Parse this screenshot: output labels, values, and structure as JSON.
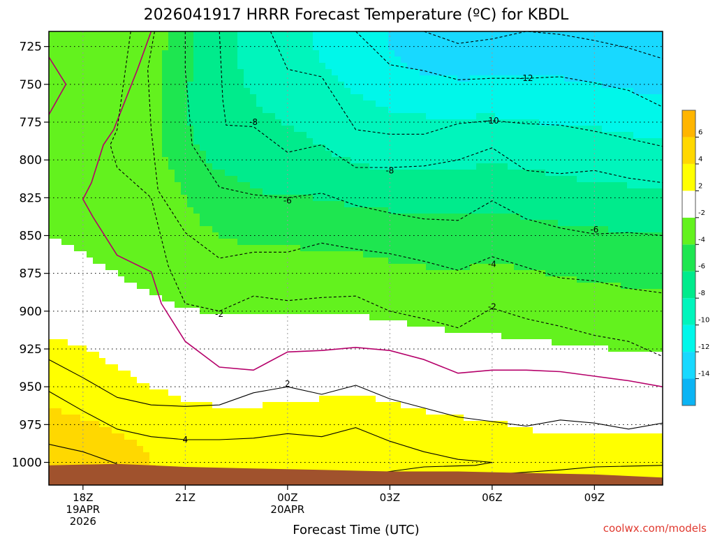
{
  "chart_data": {
    "type": "area",
    "title": "2026041917 HRRR Forecast Temperature (ºC) for KBDL",
    "subtitle": "",
    "xlabel": "Forecast Time (UTC)",
    "ylabel": "",
    "x_unit": "hours from 17Z 19APR 2026",
    "xlim": [
      0,
      18
    ],
    "ylim": [
      1015,
      715
    ],
    "y_log": false,
    "grid": true,
    "legend": "right colorbar",
    "x_ticks": [
      {
        "x": 1,
        "lines": [
          "18Z",
          "19APR",
          "2026"
        ]
      },
      {
        "x": 4,
        "lines": [
          "21Z"
        ]
      },
      {
        "x": 7,
        "lines": [
          "00Z",
          "20APR"
        ]
      },
      {
        "x": 10,
        "lines": [
          "03Z"
        ]
      },
      {
        "x": 13,
        "lines": [
          "06Z"
        ]
      },
      {
        "x": 16,
        "lines": [
          "09Z"
        ]
      }
    ],
    "y_ticks": [
      725,
      750,
      775,
      800,
      825,
      850,
      875,
      900,
      925,
      950,
      975,
      1000
    ],
    "levels": [
      {
        "lo": -99,
        "hi": -14,
        "color": "#0bb4f4"
      },
      {
        "lo": -14,
        "hi": -12,
        "color": "#18d9ff"
      },
      {
        "lo": -12,
        "hi": -10,
        "color": "#00f7ea"
      },
      {
        "lo": -10,
        "hi": -8,
        "color": "#00f5bc"
      },
      {
        "lo": -8,
        "hi": -6,
        "color": "#00eb8c"
      },
      {
        "lo": -6,
        "hi": -4,
        "color": "#1ee650"
      },
      {
        "lo": -4,
        "hi": -2,
        "color": "#63f21e"
      },
      {
        "lo": -2,
        "hi": 2,
        "color": "#ffffff"
      },
      {
        "lo": 2,
        "hi": 4,
        "color": "#ffff00"
      },
      {
        "lo": 4,
        "hi": 6,
        "color": "#ffd800"
      },
      {
        "lo": 6,
        "hi": 99,
        "color": "#ffb500"
      }
    ],
    "colorbar": {
      "colors": [
        "#0bb4f4",
        "#18d9ff",
        "#00f7ea",
        "#00f5bc",
        "#00eb8c",
        "#1ee650",
        "#63f21e",
        "#ffffff",
        "#ffff00",
        "#ffd800",
        "#ffb500"
      ],
      "labels": [
        "-14",
        "-12",
        "-10",
        "-8",
        "-6",
        "-4",
        "-2",
        "2",
        "4",
        "6"
      ]
    },
    "isotherms": [
      {
        "value": 6,
        "style": "solid",
        "color": "#000000",
        "points": [
          [
            0,
            988
          ],
          [
            1,
            993
          ],
          [
            2,
            1001
          ]
        ]
      },
      {
        "value": 4,
        "style": "solid",
        "color": "#000000",
        "points": [
          [
            0,
            953
          ],
          [
            1,
            966
          ],
          [
            2,
            978
          ],
          [
            3,
            983
          ],
          [
            4,
            985
          ],
          [
            5,
            985
          ],
          [
            6,
            984
          ],
          [
            7,
            981
          ],
          [
            8,
            983
          ],
          [
            9,
            977
          ],
          [
            10,
            986
          ],
          [
            11,
            993
          ],
          [
            12,
            998
          ],
          [
            13,
            1000
          ],
          [
            12.5,
            1002
          ],
          [
            11,
            1003
          ],
          [
            10,
            1006
          ],
          [
            9.3,
            1008
          ]
        ]
      },
      {
        "value": 4,
        "style": "solid",
        "color": "#000000",
        "points": [
          [
            12.8,
            1009
          ],
          [
            13,
            1008
          ],
          [
            15,
            1005
          ],
          [
            16,
            1003
          ],
          [
            18,
            1002
          ]
        ]
      },
      {
        "value": 2,
        "style": "solid",
        "color": "#000000",
        "points": [
          [
            0,
            932
          ],
          [
            1,
            944
          ],
          [
            2,
            957
          ],
          [
            3,
            962
          ],
          [
            4,
            963
          ],
          [
            5,
            962
          ],
          [
            6,
            954
          ],
          [
            7,
            950
          ],
          [
            8,
            955
          ],
          [
            9,
            949
          ],
          [
            10,
            958
          ],
          [
            11,
            964
          ],
          [
            12,
            970
          ],
          [
            13,
            973
          ],
          [
            14,
            976
          ],
          [
            15,
            972
          ],
          [
            16,
            974
          ],
          [
            17,
            978
          ],
          [
            18,
            974
          ]
        ]
      },
      {
        "value": -2,
        "style": "solid",
        "color": "#b5006a",
        "points": [
          [
            0,
            732
          ],
          [
            0.5,
            750
          ],
          [
            0,
            770
          ]
        ]
      },
      {
        "value": -2,
        "style": "solid",
        "color": "#b5006a",
        "points": [
          [
            3,
            715
          ],
          [
            2.6,
            740
          ],
          [
            1.9,
            780
          ],
          [
            1.6,
            790
          ],
          [
            1.25,
            815
          ],
          [
            1,
            826
          ],
          [
            1.3,
            838
          ],
          [
            2,
            863
          ],
          [
            3,
            874
          ],
          [
            3.3,
            895
          ],
          [
            4,
            920
          ],
          [
            5,
            937
          ],
          [
            6,
            939
          ],
          [
            7,
            927
          ],
          [
            8,
            926
          ],
          [
            9,
            924
          ],
          [
            10,
            926
          ],
          [
            11,
            932
          ],
          [
            12,
            941
          ],
          [
            13,
            939
          ],
          [
            14,
            939
          ],
          [
            15,
            940
          ],
          [
            16,
            943
          ],
          [
            17,
            946
          ],
          [
            18,
            950
          ]
        ]
      },
      {
        "value": -2,
        "style": "dashed",
        "color": "#000000",
        "points": [
          [
            2.4,
            715
          ],
          [
            2.0,
            780
          ],
          [
            1.8,
            790
          ],
          [
            2,
            805
          ],
          [
            3,
            825
          ],
          [
            3.5,
            870
          ],
          [
            4,
            895
          ],
          [
            5,
            900
          ],
          [
            6,
            890
          ],
          [
            7,
            893
          ],
          [
            8,
            891
          ],
          [
            9,
            890
          ],
          [
            10,
            900
          ],
          [
            11,
            905
          ],
          [
            12,
            911
          ],
          [
            13,
            898
          ],
          [
            14,
            905
          ],
          [
            15,
            910
          ],
          [
            16,
            916
          ],
          [
            17,
            920
          ],
          [
            18,
            930
          ]
        ]
      },
      {
        "value": -4,
        "style": "dashed",
        "color": "#000000",
        "points": [
          [
            3.1,
            715
          ],
          [
            2.9,
            740
          ],
          [
            3,
            780
          ],
          [
            3.2,
            820
          ],
          [
            4,
            848
          ],
          [
            5,
            865
          ],
          [
            6,
            861
          ],
          [
            7,
            861
          ],
          [
            8,
            855
          ],
          [
            9,
            859
          ],
          [
            10,
            862
          ],
          [
            11,
            867
          ],
          [
            12,
            873
          ],
          [
            13,
            864
          ],
          [
            14,
            871
          ],
          [
            15,
            878
          ],
          [
            16,
            880
          ],
          [
            17,
            885
          ],
          [
            18,
            888
          ]
        ]
      },
      {
        "value": -6,
        "style": "dashed",
        "color": "#000000",
        "points": [
          [
            4.0,
            715
          ],
          [
            4.0,
            740
          ],
          [
            4.2,
            790
          ],
          [
            5,
            818
          ],
          [
            6,
            823
          ],
          [
            7,
            825
          ],
          [
            8,
            822
          ],
          [
            9,
            830
          ],
          [
            10,
            835
          ],
          [
            11,
            839
          ],
          [
            12,
            840
          ],
          [
            13,
            827
          ],
          [
            14,
            839
          ],
          [
            15,
            845
          ],
          [
            16,
            849
          ],
          [
            17,
            848
          ],
          [
            18,
            850
          ]
        ]
      },
      {
        "value": -8,
        "style": "dashed",
        "color": "#000000",
        "points": [
          [
            5.0,
            715
          ],
          [
            5.1,
            760
          ],
          [
            5.2,
            777
          ],
          [
            6,
            778
          ],
          [
            7,
            795
          ],
          [
            8,
            790
          ],
          [
            9,
            805
          ],
          [
            10,
            805
          ],
          [
            11,
            804
          ],
          [
            12,
            800
          ],
          [
            13,
            792
          ],
          [
            14,
            807
          ],
          [
            15,
            809
          ],
          [
            16,
            807
          ],
          [
            17,
            812
          ],
          [
            18,
            815
          ]
        ]
      },
      {
        "value": -10,
        "style": "dashed",
        "color": "#000000",
        "points": [
          [
            6.5,
            715
          ],
          [
            7,
            740
          ],
          [
            8,
            745
          ],
          [
            9,
            780
          ],
          [
            10,
            783
          ],
          [
            11,
            783
          ],
          [
            12,
            776
          ],
          [
            13,
            774
          ],
          [
            14,
            776
          ],
          [
            15,
            777
          ],
          [
            16,
            781
          ],
          [
            17,
            786
          ],
          [
            18,
            791
          ]
        ]
      },
      {
        "value": -12,
        "style": "dashed",
        "color": "#000000",
        "points": [
          [
            9,
            715
          ],
          [
            10,
            737
          ],
          [
            11,
            741
          ],
          [
            12,
            747
          ],
          [
            13,
            746
          ],
          [
            14,
            746
          ],
          [
            15,
            745
          ],
          [
            16,
            749
          ],
          [
            17,
            754
          ],
          [
            18,
            765
          ]
        ]
      },
      {
        "value": -14,
        "style": "dashed",
        "color": "#000000",
        "points": [
          [
            11,
            715
          ],
          [
            12,
            723
          ],
          [
            13,
            720
          ],
          [
            14,
            715
          ],
          [
            15,
            717
          ],
          [
            16,
            721
          ],
          [
            17,
            726
          ],
          [
            18,
            733
          ]
        ]
      }
    ],
    "contour_labels": [
      {
        "text": "-2",
        "x": 5.0,
        "y": 902
      },
      {
        "text": "-2",
        "x": 13.0,
        "y": 897
      },
      {
        "text": "-4",
        "x": 13.0,
        "y": 869
      },
      {
        "text": "-6",
        "x": 7.0,
        "y": 827
      },
      {
        "text": "-6",
        "x": 16.0,
        "y": 846
      },
      {
        "text": "-8",
        "x": 6.0,
        "y": 775
      },
      {
        "text": "-8",
        "x": 10.0,
        "y": 807
      },
      {
        "text": "-10",
        "x": 13.0,
        "y": 774
      },
      {
        "text": "-12",
        "x": 14.0,
        "y": 746
      },
      {
        "text": "2",
        "x": 7.0,
        "y": 948
      },
      {
        "text": "4",
        "x": 4.0,
        "y": 985
      }
    ],
    "terrain": {
      "color": "#a0522d",
      "surface_pressure": [
        [
          0,
          1002
        ],
        [
          2,
          1001
        ],
        [
          3,
          1002
        ],
        [
          4,
          1003
        ],
        [
          6,
          1004
        ],
        [
          8,
          1005
        ],
        [
          10,
          1006
        ],
        [
          12,
          1006
        ],
        [
          14,
          1007
        ],
        [
          16,
          1008
        ],
        [
          18,
          1010
        ]
      ]
    }
  },
  "credit": "coolwx.com/models"
}
